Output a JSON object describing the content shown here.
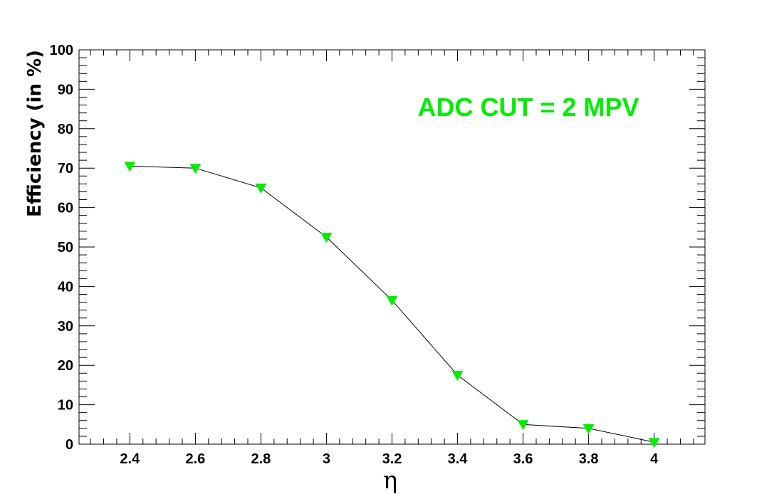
{
  "chart_data": {
    "type": "line",
    "title": "",
    "xlabel": "η",
    "ylabel": "Efficiency (in %)",
    "xlim": [
      2.245,
      4.155
    ],
    "ylim": [
      0,
      100
    ],
    "x_ticks": [
      2.4,
      2.6,
      2.8,
      3,
      3.2,
      3.4,
      3.6,
      3.8,
      4
    ],
    "x_tick_labels": [
      "2.4",
      "2.6",
      "2.8",
      "3",
      "3.2",
      "3.4",
      "3.6",
      "3.8",
      "4"
    ],
    "y_ticks": [
      0,
      10,
      20,
      30,
      40,
      50,
      60,
      70,
      80,
      90,
      100
    ],
    "y_tick_labels": [
      "0",
      "10",
      "20",
      "30",
      "40",
      "50",
      "60",
      "70",
      "80",
      "90",
      "100"
    ],
    "grid": false,
    "series": [
      {
        "x": [
          2.4,
          2.6,
          2.8,
          3.0,
          3.2,
          3.4,
          3.6,
          3.8,
          4.0
        ],
        "y": [
          70.5,
          70.0,
          65.0,
          52.5,
          36.5,
          17.5,
          5.0,
          4.0,
          0.5
        ],
        "marker": "triangle-down",
        "marker_color": "#00ee00",
        "line_color": "#000000"
      }
    ],
    "annotations": [
      {
        "text": "ADC CUT = 2 MPV",
        "color": "#00ee00",
        "position": "top-right"
      }
    ]
  }
}
